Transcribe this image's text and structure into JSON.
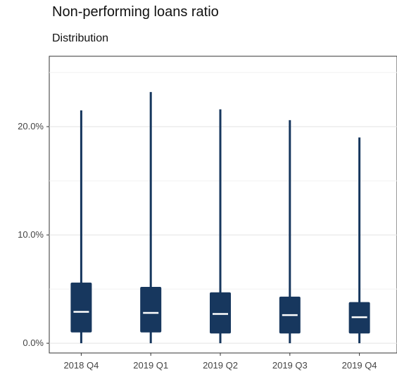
{
  "chart_data": {
    "type": "boxplot",
    "title": "Non-performing loans ratio",
    "subtitle": "Distribution",
    "xlabel": "",
    "ylabel": "",
    "categories": [
      "2018 Q4",
      "2019 Q1",
      "2019 Q2",
      "2019 Q3",
      "2019 Q4"
    ],
    "boxes": [
      {
        "category": "2018 Q4",
        "min": 0.0,
        "q1": 1.0,
        "median": 2.9,
        "q3": 5.6,
        "max": 21.5
      },
      {
        "category": "2019 Q1",
        "min": 0.0,
        "q1": 1.0,
        "median": 2.8,
        "q3": 5.2,
        "max": 23.2
      },
      {
        "category": "2019 Q2",
        "min": 0.0,
        "q1": 0.9,
        "median": 2.7,
        "q3": 4.7,
        "max": 21.6
      },
      {
        "category": "2019 Q3",
        "min": 0.0,
        "q1": 0.9,
        "median": 2.6,
        "q3": 4.3,
        "max": 20.6
      },
      {
        "category": "2019 Q4",
        "min": 0.0,
        "q1": 0.9,
        "median": 2.4,
        "q3": 3.8,
        "max": 19.0
      }
    ],
    "y_ticks": [
      0,
      10,
      20
    ],
    "y_tick_labels": [
      "0.0%",
      "10.0%",
      "20.0%"
    ],
    "ylim": [
      -0.9,
      26.5
    ],
    "grid": true,
    "legend": "none",
    "box_color": "#17375e",
    "median_color": "#ffffff"
  }
}
